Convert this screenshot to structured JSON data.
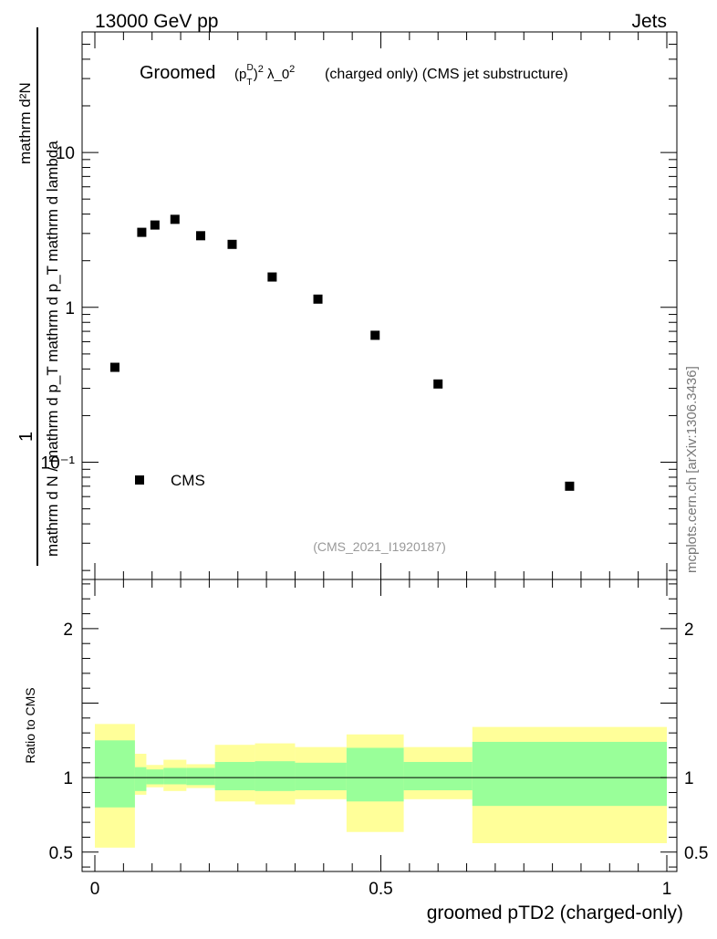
{
  "header": {
    "left_label": "13000 GeV pp",
    "right_label": "Jets"
  },
  "side_label": "mcplots.cern.ch [arXiv:1306.3436]",
  "analysis_tag": "(CMS_2021_I1920187)",
  "title": {
    "prefix": "Groomed",
    "suffix": "(charged only) (CMS jet substructure)"
  },
  "chart_data": [
    {
      "type": "scatter",
      "name": "main",
      "yscale": "log",
      "xlim": [
        0,
        1
      ],
      "ylim": [
        0.0175,
        60
      ],
      "ylabel": {
        "numerator": "mathrm d²N",
        "denominator": "mathrm d N / mathrm d p_T mathrm d p_T mathrm d lambda",
        "prefix": "1"
      },
      "yticks": [
        {
          "value": 10,
          "label": "10"
        },
        {
          "value": 1,
          "label": "1"
        },
        {
          "value": 0.1,
          "label": "10⁻¹"
        }
      ],
      "legend": {
        "label": "CMS",
        "position": "bottom-left"
      },
      "series": [
        {
          "name": "CMS",
          "x": [
            0.035,
            0.082,
            0.105,
            0.14,
            0.185,
            0.24,
            0.31,
            0.39,
            0.49,
            0.6,
            0.83
          ],
          "y": [
            0.41,
            3.05,
            3.4,
            3.7,
            2.9,
            2.55,
            1.57,
            1.13,
            0.66,
            0.32,
            0.07
          ]
        }
      ]
    },
    {
      "type": "area",
      "name": "ratio",
      "xlim": [
        0,
        1
      ],
      "ylim": [
        0.37,
        2.33
      ],
      "xlabel": "groomed pTD2 (charged-only)",
      "ylabel": "Ratio to CMS",
      "xticks": [
        {
          "value": 0,
          "label": "0"
        },
        {
          "value": 0.5,
          "label": "0.5"
        },
        {
          "value": 1,
          "label": "1"
        }
      ],
      "yticks": [
        {
          "value": 2,
          "label": "2"
        },
        {
          "value": 1,
          "label": "1"
        },
        {
          "value": 0.5,
          "label": "0.5"
        }
      ],
      "reference_line": 1,
      "bins": [
        0,
        0.07,
        0.09,
        0.12,
        0.16,
        0.21,
        0.28,
        0.35,
        0.44,
        0.54,
        0.66,
        1.0
      ],
      "band_inner": {
        "color": "#99ff99",
        "lo": [
          0.8,
          0.91,
          0.955,
          0.955,
          0.95,
          0.915,
          0.91,
          0.915,
          0.84,
          0.915,
          0.81
        ],
        "hi": [
          1.25,
          1.07,
          1.055,
          1.065,
          1.065,
          1.105,
          1.11,
          1.1,
          1.2,
          1.105,
          1.24
        ]
      },
      "band_outer": {
        "color": "#ffff99",
        "lo": [
          0.53,
          0.885,
          0.935,
          0.91,
          0.93,
          0.84,
          0.82,
          0.855,
          0.635,
          0.855,
          0.56
        ],
        "hi": [
          1.36,
          1.16,
          1.085,
          1.12,
          1.09,
          1.22,
          1.23,
          1.205,
          1.29,
          1.205,
          1.34
        ]
      }
    }
  ]
}
